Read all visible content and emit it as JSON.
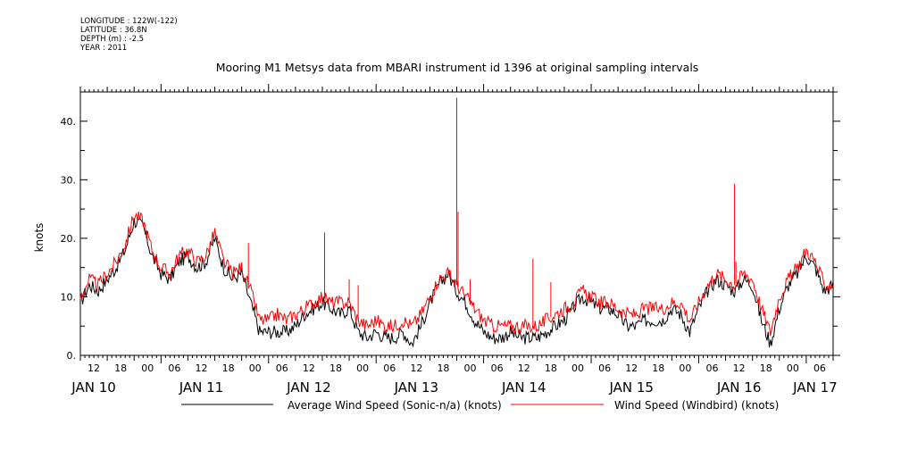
{
  "header": {
    "longitude": "LONGITUDE : 122W(-122)",
    "latitude": "LATITUDE : 36.8N",
    "depth": "DEPTH (m) : -2.5",
    "year": "YEAR : 2011"
  },
  "chart_data": {
    "type": "line",
    "title": "Mooring M1 Metsys data from MBARI instrument id 1396 at original sampling intervals",
    "ylabel": "knots",
    "xlabel": "",
    "ylim": [
      0,
      45
    ],
    "y_ticks": [
      "0.",
      "10.",
      "20.",
      "30.",
      "40."
    ],
    "x_range_hours": [
      0,
      168
    ],
    "x_tick_labels": [
      "12",
      "18",
      "00",
      "06",
      "12",
      "18",
      "00",
      "06",
      "12",
      "18",
      "00",
      "06",
      "12",
      "18",
      "00",
      "06",
      "12",
      "18",
      "00",
      "06",
      "12",
      "18",
      "00",
      "06",
      "12",
      "18",
      "00",
      "06"
    ],
    "day_labels": [
      "JAN 10",
      "JAN 11",
      "JAN 12",
      "JAN 13",
      "JAN 14",
      "JAN 15",
      "JAN 16",
      "JAN 17"
    ],
    "grid": false,
    "legend_position": "bottom",
    "colors": {
      "series_1": "#000000",
      "series_2": "#ff0000"
    },
    "series": [
      {
        "name": "Average Wind Speed (Sonic-n/a) (knots)",
        "color": "#000000",
        "x": [
          0,
          2,
          4,
          6,
          8,
          10,
          12,
          14,
          16,
          18,
          20,
          22,
          24,
          26,
          28,
          30,
          32,
          34,
          36,
          38,
          40,
          42,
          44,
          46,
          48,
          50,
          52,
          54,
          56,
          58,
          60,
          62,
          64,
          66,
          68,
          70,
          72,
          74,
          76,
          78,
          80,
          82,
          84,
          86,
          88,
          90,
          92,
          94,
          96,
          98,
          100,
          102,
          104,
          106,
          108,
          110,
          112,
          114,
          116,
          118,
          120,
          122,
          124,
          126,
          128,
          130,
          132,
          134,
          136,
          138,
          140,
          142,
          144,
          146,
          148,
          150,
          152,
          154,
          156,
          158,
          160,
          162,
          164,
          166,
          168
        ],
        "values": [
          9,
          12,
          11,
          13,
          15,
          18,
          23,
          22,
          17,
          14,
          13,
          16,
          17,
          15,
          16,
          20,
          15,
          13,
          14,
          9,
          4,
          4,
          4,
          4,
          5,
          7,
          8,
          9,
          8,
          7,
          8,
          4,
          3,
          4,
          3,
          3,
          4,
          2,
          5,
          9,
          12,
          14,
          11,
          9,
          6,
          4,
          3,
          3,
          4,
          3,
          3,
          3,
          4,
          5,
          6,
          8,
          10,
          9,
          8,
          8,
          7,
          5,
          5,
          6,
          6,
          6,
          8,
          7,
          4,
          8,
          11,
          13,
          12,
          11,
          13,
          12,
          6,
          2,
          8,
          12,
          14,
          17,
          15,
          11,
          12
        ]
      },
      {
        "name": "Wind Speed (Windbird) (knots)",
        "color": "#ff0000",
        "x": [
          0,
          2,
          4,
          6,
          8,
          10,
          12,
          14,
          16,
          18,
          20,
          22,
          24,
          26,
          28,
          30,
          32,
          34,
          36,
          38,
          40,
          42,
          44,
          46,
          48,
          50,
          52,
          54,
          56,
          58,
          60,
          62,
          64,
          66,
          68,
          70,
          72,
          74,
          76,
          78,
          80,
          82,
          84,
          86,
          88,
          90,
          92,
          94,
          96,
          98,
          100,
          102,
          104,
          106,
          108,
          110,
          112,
          114,
          116,
          118,
          120,
          122,
          124,
          126,
          128,
          130,
          132,
          134,
          136,
          138,
          140,
          142,
          144,
          146,
          148,
          150,
          152,
          154,
          156,
          158,
          160,
          162,
          164,
          166,
          168
        ],
        "values": [
          10,
          13,
          12,
          14,
          16,
          19,
          24,
          23,
          18,
          15,
          14,
          17,
          18,
          16,
          17,
          21,
          16,
          14,
          15,
          11,
          6,
          6,
          7,
          6,
          7,
          8,
          9,
          10,
          9,
          9,
          9,
          6,
          5,
          6,
          5,
          5,
          6,
          5,
          7,
          10,
          13,
          14,
          12,
          10,
          8,
          6,
          5,
          5,
          5,
          5,
          5,
          5,
          6,
          7,
          8,
          9,
          11,
          10,
          9,
          9,
          8,
          7,
          7,
          8,
          8,
          8,
          9,
          9,
          6,
          9,
          12,
          14,
          13,
          12,
          14,
          13,
          8,
          4,
          10,
          13,
          15,
          18,
          16,
          12,
          12
        ],
        "spikes": [
          {
            "x": 37.5,
            "y": 19.2
          },
          {
            "x": 54.5,
            "y": 21
          },
          {
            "x": 60,
            "y": 13
          },
          {
            "x": 62,
            "y": 12
          },
          {
            "x": 84,
            "y": 44
          },
          {
            "x": 84.3,
            "y": 24.5
          },
          {
            "x": 87,
            "y": 13
          },
          {
            "x": 101,
            "y": 16.5
          },
          {
            "x": 105,
            "y": 12.5
          },
          {
            "x": 146,
            "y": 29.3
          },
          {
            "x": 146.3,
            "y": 16
          }
        ]
      }
    ]
  }
}
